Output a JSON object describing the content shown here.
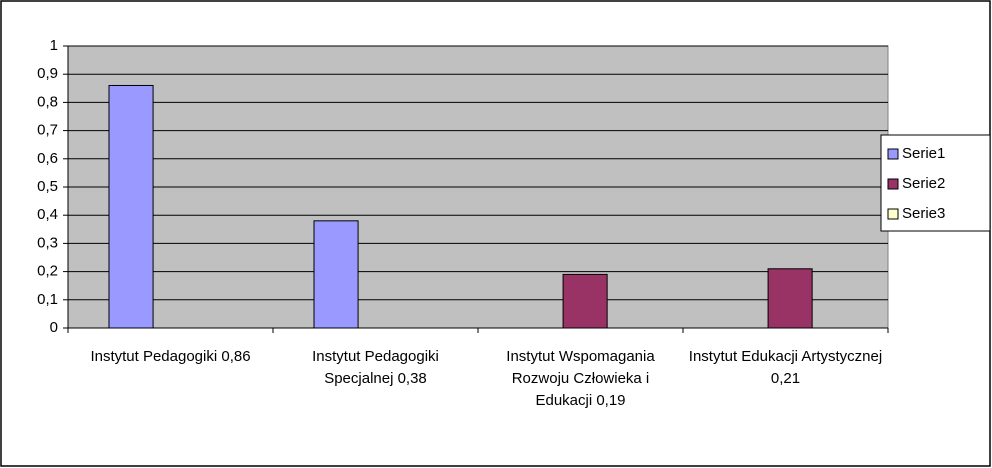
{
  "chart_data": {
    "type": "bar",
    "categories": [
      "Instytut Pedagogiki 0,86",
      "Instytut Pedagogiki Specjalnej 0,38",
      "Instytut Wspomagania Rozwoju Człowieka i Edukacji 0,19",
      "Instytut Edukacji Artystycznej 0,21"
    ],
    "series": [
      {
        "name": "Serie1",
        "color": "#9999ff",
        "values": [
          0.86,
          0.38,
          null,
          null
        ]
      },
      {
        "name": "Serie2",
        "color": "#993366",
        "values": [
          null,
          null,
          0.19,
          0.21
        ]
      },
      {
        "name": "Serie3",
        "color": "#ffffcc",
        "values": [
          null,
          null,
          null,
          null
        ]
      }
    ],
    "ylim": [
      0,
      1
    ],
    "yticks": [
      0,
      {
        "value": 0.1,
        "label": "0,1"
      },
      {
        "value": 0.2,
        "label": "0,2"
      },
      {
        "value": 0.3,
        "label": "0,3"
      },
      {
        "value": 0.4,
        "label": "0,4"
      },
      {
        "value": 0.5,
        "label": "0,5"
      },
      {
        "value": 0.6,
        "label": "0,6"
      },
      {
        "value": 0.7,
        "label": "0,7"
      },
      {
        "value": 0.8,
        "label": "0,8"
      },
      {
        "value": 0.9,
        "label": "0,9"
      },
      1
    ],
    "grid": true,
    "legend": "right"
  }
}
